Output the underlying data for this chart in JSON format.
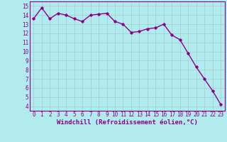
{
  "x": [
    0,
    1,
    2,
    3,
    4,
    5,
    6,
    7,
    8,
    9,
    10,
    11,
    12,
    13,
    14,
    15,
    16,
    17,
    18,
    19,
    20,
    21,
    22,
    23
  ],
  "y": [
    13.6,
    14.8,
    13.6,
    14.2,
    14.0,
    13.6,
    13.3,
    14.0,
    14.1,
    14.2,
    13.3,
    13.0,
    12.1,
    12.2,
    12.5,
    12.6,
    13.0,
    11.8,
    11.3,
    9.8,
    8.3,
    7.0,
    5.7,
    4.2
  ],
  "line_color": "#8B008B",
  "marker": "D",
  "marker_size": 1.8,
  "bg_color": "#b2ebee",
  "grid_color": "#9ecdd0",
  "xlabel": "Windchill (Refroidissement éolien,°C)",
  "xlabel_color": "#8B008B",
  "xlabel_fontsize": 6.5,
  "xtick_labels": [
    "0",
    "1",
    "2",
    "3",
    "4",
    "5",
    "6",
    "7",
    "8",
    "9",
    "10",
    "11",
    "12",
    "13",
    "14",
    "15",
    "16",
    "17",
    "18",
    "19",
    "20",
    "21",
    "22",
    "23"
  ],
  "ytick_labels": [
    "4",
    "5",
    "6",
    "7",
    "8",
    "9",
    "10",
    "11",
    "12",
    "13",
    "14",
    "15"
  ],
  "ylim": [
    3.5,
    15.5
  ],
  "xlim": [
    -0.5,
    23.5
  ],
  "yticks": [
    4,
    5,
    6,
    7,
    8,
    9,
    10,
    11,
    12,
    13,
    14,
    15
  ],
  "tick_color": "#8B008B",
  "tick_fontsize": 5.5,
  "line_width": 1.0
}
